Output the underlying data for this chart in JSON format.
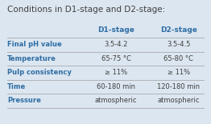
{
  "title": "Conditions in D1-stage and D2-stage:",
  "col_headers": [
    "",
    "D1-stage",
    "D2-stage"
  ],
  "rows": [
    [
      "Final pH value",
      "3.5-4.2",
      "3.5-4.5"
    ],
    [
      "Temperature",
      "65-75 °C",
      "65-80 °C"
    ],
    [
      "Pulp consistency",
      "≥ 11%",
      "≥ 11%"
    ],
    [
      "Time",
      "60-180 min",
      "120-180 min"
    ],
    [
      "Pressure",
      "atmospheric",
      "atmospheric"
    ]
  ],
  "bg_color": "#dce6f0",
  "title_color": "#404040",
  "header_color": "#2e6da4",
  "row_label_color": "#2e6da4",
  "value_color": "#404040",
  "line_color": "#aaaaaa",
  "title_fontsize": 7.5,
  "header_fontsize": 6.5,
  "cell_fontsize": 6.0
}
